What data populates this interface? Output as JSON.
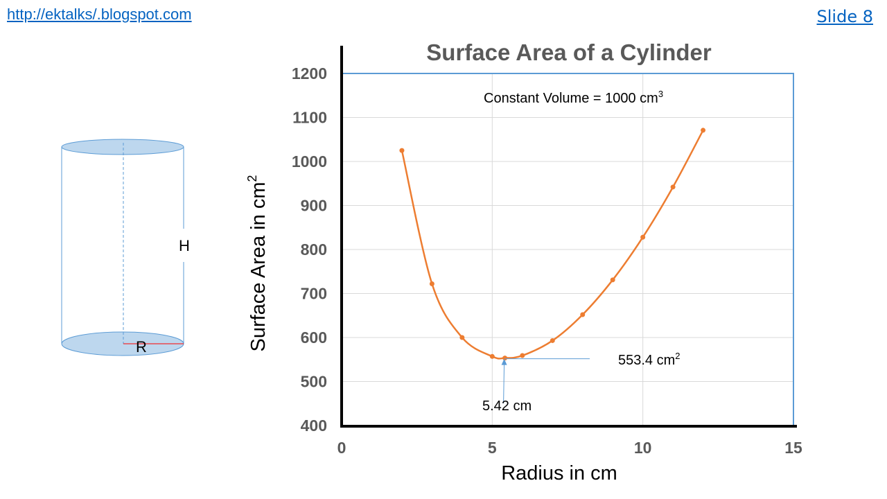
{
  "header": {
    "blog_link": "http://ektalks/.blogspot.com",
    "slide_label": "Slide 8"
  },
  "diagram": {
    "height_label": "H",
    "radius_label": "R",
    "fill_color": "#bdd7ee",
    "line_color": "#5b9bd5",
    "radius_color": "#ff0000"
  },
  "chart_data": {
    "type": "line",
    "title": "Surface Area of a Cylinder",
    "xlabel": "Radius in cm",
    "ylabel": "Surface Area in cm",
    "ylabel_sup": "2",
    "xlim": [
      0,
      15
    ],
    "ylim": [
      400,
      1200
    ],
    "x_ticks": [
      0,
      5,
      10,
      15
    ],
    "y_ticks": [
      400,
      500,
      600,
      700,
      800,
      900,
      1000,
      1100,
      1200
    ],
    "grid": true,
    "series": [
      {
        "color": "#ed7d31",
        "points": [
          [
            2,
            1025
          ],
          [
            3,
            722
          ],
          [
            4,
            600
          ],
          [
            5,
            557
          ],
          [
            5.42,
            553.4
          ],
          [
            6,
            559
          ],
          [
            7,
            593
          ],
          [
            8,
            652
          ],
          [
            9,
            731
          ],
          [
            10,
            828
          ],
          [
            11,
            942
          ],
          [
            12,
            1071
          ]
        ]
      }
    ],
    "annotations": {
      "volume_text": "Constant Volume = 1000 cm",
      "volume_sup": "3",
      "min_value_text": "553.4 cm",
      "min_value_sup": "2",
      "min_radius_text": "5.42 cm",
      "min_point": [
        5.42,
        553.4
      ]
    },
    "colors": {
      "axis": "#000000",
      "frame": "#5b9bd5",
      "grid": "#d9d9d9",
      "title": "#595959",
      "annotation_arrow": "#5b9bd5"
    }
  }
}
